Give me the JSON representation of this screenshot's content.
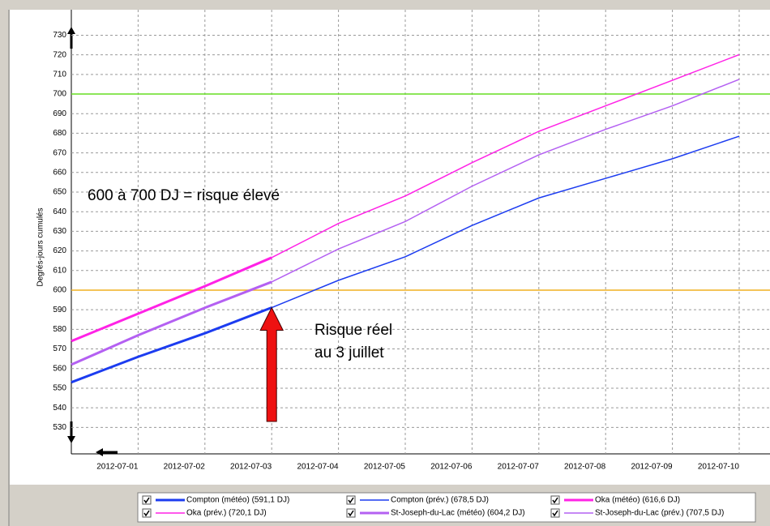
{
  "chart_data": {
    "type": "line",
    "y_label": "Degrés-jours cumulés",
    "categories": [
      null,
      "2012-07-01",
      "2012-07-02",
      "2012-07-03",
      "2012-07-04",
      "2012-07-05",
      "2012-07-06",
      "2012-07-07",
      "2012-07-08",
      "2012-07-09",
      "2012-07-10"
    ],
    "series": [
      {
        "name": "Compton (météo) (591,1 DJ)",
        "color": "#1c3cf0",
        "line_width": 3,
        "values": [
          553,
          566,
          578,
          591.1,
          null,
          null,
          null,
          null,
          null,
          null,
          null
        ]
      },
      {
        "name": "Compton (prév.) (678,5 DJ)",
        "color": "#1c3cf0",
        "line_width": 1.5,
        "values": [
          null,
          null,
          null,
          591.1,
          605,
          617,
          633,
          647,
          657,
          667,
          678.5
        ]
      },
      {
        "name": "Oka (météo) (616,6 DJ)",
        "color": "#ff22e6",
        "line_width": 3,
        "values": [
          574,
          588,
          602,
          616.6,
          null,
          null,
          null,
          null,
          null,
          null,
          null
        ]
      },
      {
        "name": "Oka (prév.) (720,1 DJ)",
        "color": "#ff22e6",
        "line_width": 1.5,
        "values": [
          null,
          null,
          null,
          616.6,
          634,
          648,
          665,
          681,
          694,
          707,
          720.1
        ]
      },
      {
        "name": "St-Joseph-du-Lac (météo) (604,2 DJ)",
        "color": "#b460f2",
        "line_width": 3,
        "values": [
          562,
          577,
          591,
          604.2,
          null,
          null,
          null,
          null,
          null,
          null,
          null
        ]
      },
      {
        "name": "St-Joseph-du-Lac (prév.) (707,5 DJ)",
        "color": "#b460f2",
        "line_width": 1.5,
        "values": [
          null,
          null,
          null,
          604.2,
          621,
          635,
          653,
          669,
          682,
          694,
          707.5
        ]
      }
    ],
    "ylim": [
      516.5,
      743
    ],
    "yticks": [
      530,
      540,
      550,
      560,
      570,
      580,
      590,
      600,
      610,
      620,
      630,
      640,
      650,
      660,
      670,
      680,
      690,
      700,
      710,
      720,
      730
    ],
    "grid": true,
    "reference_lines": [
      {
        "value": 700,
        "color": "#66dd22"
      },
      {
        "value": 600,
        "color": "#f0b020"
      }
    ],
    "annotations": {
      "range": "600 à 700 DJ = risque élevé",
      "actual": [
        "Risque réel",
        "au 3 juillet"
      ],
      "arrow_category": 3,
      "arrow_value": 591.1
    },
    "legend": "bottom"
  }
}
